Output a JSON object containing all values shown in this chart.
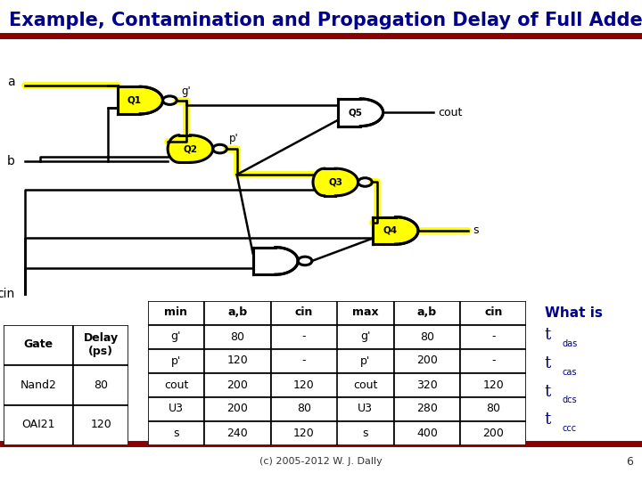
{
  "title": "Example, Contamination and Propagation Delay of Full Adder",
  "title_color": "#00008B",
  "title_fontsize": 15,
  "separator_color": "#8B0000",
  "separator_thickness": 5,
  "bg_color": "#FFFFFF",
  "footer_text": "(c) 2005-2012 W. J. Dally",
  "footer_color": "#333333",
  "footer_fontsize": 8,
  "page_number": "6",
  "page_num_color": "#333333",
  "page_num_fontsize": 9,
  "yellow": "#FFFF00",
  "gate_lw": 2.2,
  "gate_table": {
    "headers": [
      "Gate",
      "Delay\n(ps)"
    ],
    "rows": [
      [
        "Nand2",
        "80"
      ],
      [
        "OAI21",
        "120"
      ]
    ]
  },
  "min_table": {
    "header": [
      "min",
      "a,b",
      "cin"
    ],
    "rows": [
      [
        "g'",
        "80",
        "-"
      ],
      [
        "p'",
        "120",
        "-"
      ],
      [
        "cout",
        "200",
        "120"
      ],
      [
        "U3",
        "200",
        "80"
      ],
      [
        "s",
        "240",
        "120"
      ]
    ]
  },
  "max_table": {
    "header": [
      "max",
      "a,b",
      "cin"
    ],
    "rows": [
      [
        "g'",
        "80",
        "-"
      ],
      [
        "p'",
        "200",
        "-"
      ],
      [
        "cout",
        "320",
        "120"
      ],
      [
        "U3",
        "280",
        "80"
      ],
      [
        "s",
        "400",
        "200"
      ]
    ]
  },
  "what_is_label": "What is",
  "what_is_color": "#00008B",
  "what_is_items": [
    [
      "t",
      "das"
    ],
    [
      "t",
      "cas"
    ],
    [
      "t",
      "dcs"
    ],
    [
      "t",
      "ccc"
    ]
  ]
}
